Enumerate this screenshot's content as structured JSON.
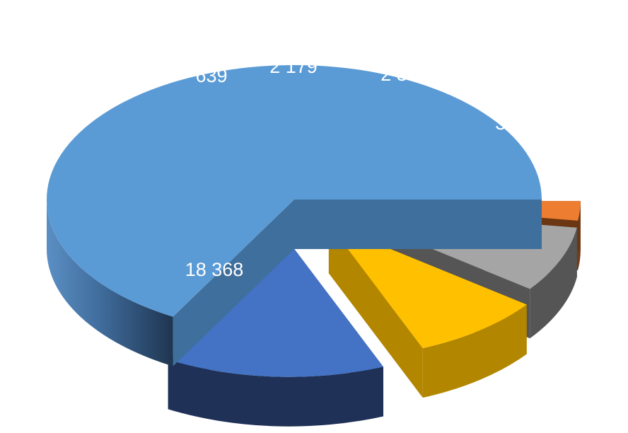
{
  "chart_data": {
    "type": "pie",
    "title": "",
    "legend": "none",
    "slices": [
      {
        "value": 18368,
        "label": "18 368",
        "color": "#5B9BD5",
        "side_color": "#3F6F9C"
      },
      {
        "value": 3941,
        "label": "3 941",
        "color": "#4472C4",
        "side_color": "#1F3156"
      },
      {
        "value": 2348,
        "label": "2 348",
        "color": "#FFC000",
        "side_color": "#B38600"
      },
      {
        "value": 2179,
        "label": "2 179",
        "color": "#A5A5A5",
        "side_color": "#555555"
      },
      {
        "value": 639,
        "label": "639",
        "color": "#ED7D31",
        "side_color": "#6B3712"
      }
    ]
  }
}
